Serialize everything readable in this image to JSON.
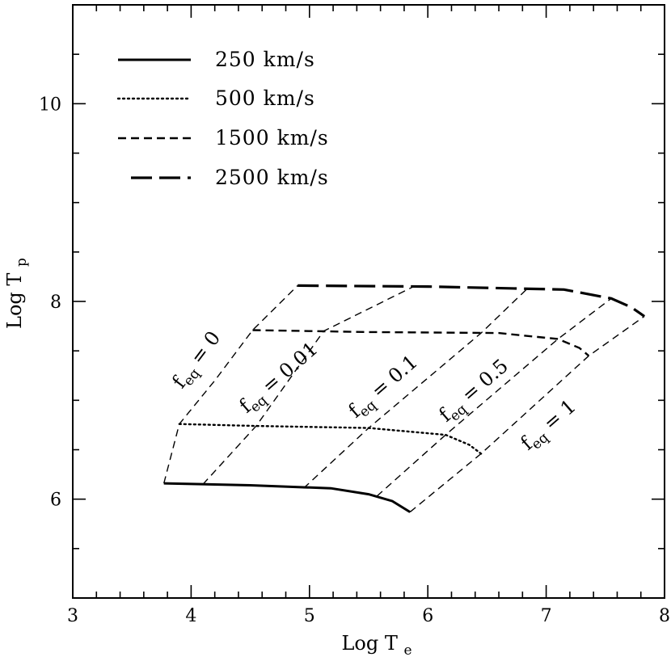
{
  "chart_data": {
    "type": "line",
    "title": "",
    "xlabel": "Log T",
    "xlabel_subscript": "e",
    "ylabel": "Log T",
    "ylabel_subscript": "p",
    "xlim": [
      3,
      8
    ],
    "ylim": [
      5,
      11
    ],
    "x_ticks": [
      "3",
      "4",
      "5",
      "6",
      "7",
      "8"
    ],
    "y_ticks": [
      "6",
      "8",
      "10"
    ],
    "grid": false,
    "legend_position": "top-left",
    "series": [
      {
        "name": "250 km/s",
        "style": "solid",
        "points": [
          [
            3.77,
            6.16
          ],
          [
            4.5,
            6.14
          ],
          [
            5.18,
            6.11
          ],
          [
            5.5,
            6.05
          ],
          [
            5.7,
            5.98
          ],
          [
            5.85,
            5.87
          ]
        ]
      },
      {
        "name": "500 km/s",
        "style": "dotted",
        "points": [
          [
            3.9,
            6.76
          ],
          [
            4.55,
            6.74
          ],
          [
            5.5,
            6.72
          ],
          [
            6.15,
            6.65
          ],
          [
            6.35,
            6.55
          ],
          [
            6.45,
            6.46
          ]
        ]
      },
      {
        "name": "1500 km/s",
        "style": "dashed",
        "points": [
          [
            4.52,
            7.71
          ],
          [
            5.5,
            7.69
          ],
          [
            6.6,
            7.68
          ],
          [
            7.1,
            7.62
          ],
          [
            7.28,
            7.53
          ],
          [
            7.36,
            7.45
          ]
        ]
      },
      {
        "name": "2500 km/s",
        "style": "long-dashed",
        "points": [
          [
            4.9,
            8.16
          ],
          [
            6.0,
            8.15
          ],
          [
            7.15,
            8.12
          ],
          [
            7.55,
            8.03
          ],
          [
            7.72,
            7.94
          ],
          [
            7.83,
            7.85
          ]
        ]
      }
    ],
    "feq_lines": [
      {
        "sub": "eq",
        "value": "0",
        "points": [
          [
            3.77,
            6.16
          ],
          [
            3.9,
            6.76
          ],
          [
            4.2,
            7.2
          ],
          [
            4.52,
            7.71
          ],
          [
            4.9,
            8.16
          ]
        ]
      },
      {
        "sub": "eq",
        "value": "0.01",
        "points": [
          [
            4.1,
            6.15
          ],
          [
            4.55,
            6.74
          ],
          [
            5.12,
            7.7
          ],
          [
            5.88,
            8.15
          ]
        ]
      },
      {
        "sub": "eq",
        "value": "0.1",
        "points": [
          [
            4.95,
            6.11
          ],
          [
            5.5,
            6.72
          ],
          [
            6.45,
            7.68
          ],
          [
            6.85,
            8.14
          ]
        ]
      },
      {
        "sub": "eq",
        "value": "0.5",
        "points": [
          [
            5.57,
            6.03
          ],
          [
            6.15,
            6.65
          ],
          [
            7.1,
            7.62
          ],
          [
            7.55,
            8.03
          ]
        ]
      },
      {
        "sub": "eq",
        "value": "1",
        "points": [
          [
            5.85,
            5.87
          ],
          [
            6.45,
            6.46
          ],
          [
            7.36,
            7.45
          ],
          [
            7.83,
            7.85
          ]
        ]
      }
    ]
  }
}
